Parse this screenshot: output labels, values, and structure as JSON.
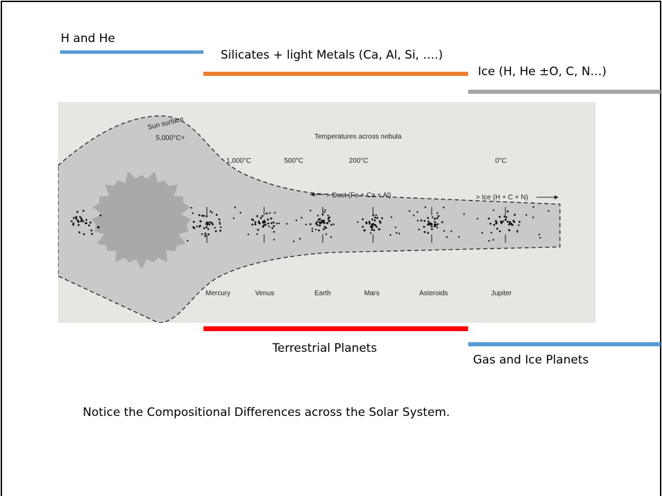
{
  "composition_labels": [
    "H and He",
    "Silicates + light Metals (Ca, Al, Si, ….)",
    "Ice (H, He ±O, C, N…)"
  ],
  "figure": {
    "sun_label": "Sun surface",
    "sun_temperature": "5,000°C+",
    "title": "Temperatures across nebula",
    "temperatures": [
      "1,000°C",
      "500°C",
      "200°C",
      "0°C"
    ],
    "dust_label": "> Dust (Fe + Ca + Al)",
    "ice_label": "> Ice (H + C + N)",
    "bodies": [
      "Mercury",
      "Venus",
      "Earth",
      "Mars",
      "Asteroids",
      "Jupiter"
    ]
  },
  "planet_groups": [
    "Terrestrial Planets",
    "Gas and Ice Planets"
  ],
  "note": "Notice the Compositional Differences across the Solar System."
}
